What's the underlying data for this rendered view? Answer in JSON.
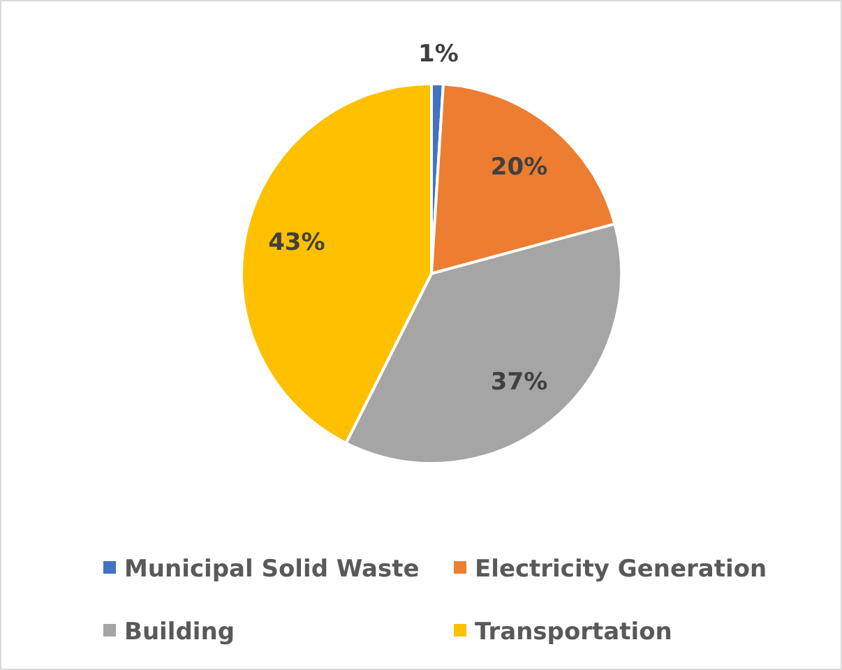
{
  "chart_data": {
    "type": "pie",
    "categories": [
      "Municipal Solid Waste",
      "Electricity Generation",
      "Building",
      "Transportation"
    ],
    "values": [
      1,
      20,
      37,
      43
    ],
    "colors": [
      "#4472c4",
      "#ed7d31",
      "#a5a5a5",
      "#ffc000"
    ],
    "value_labels": [
      "1%",
      "20%",
      "37%",
      "43%"
    ],
    "legend": "bottom"
  }
}
